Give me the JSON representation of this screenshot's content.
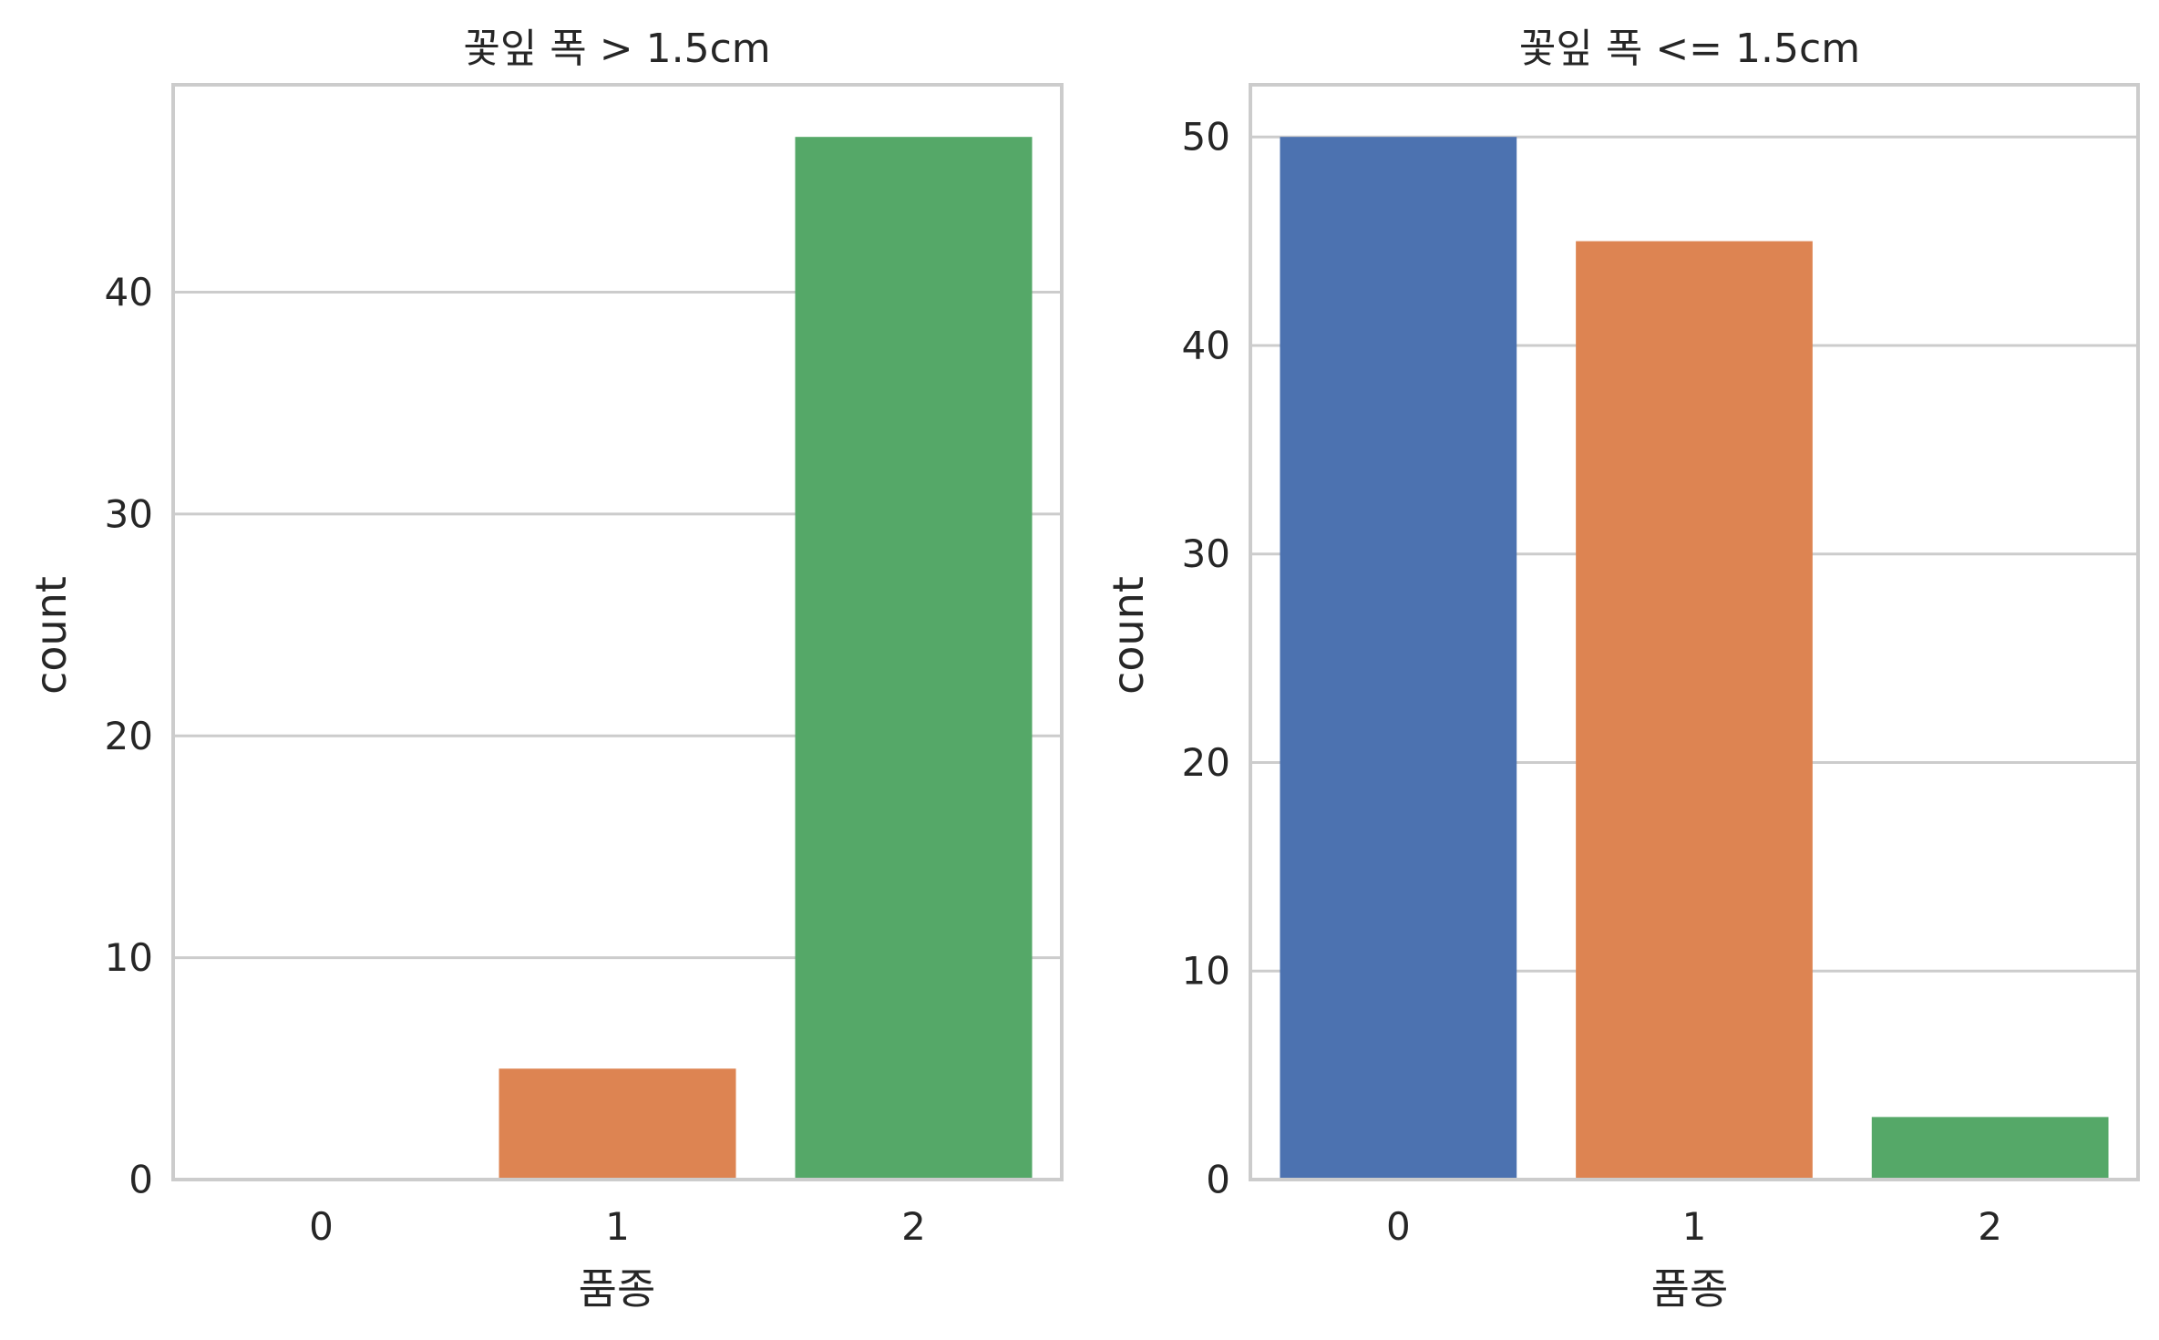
{
  "chart_data": [
    {
      "type": "bar",
      "title": "꽃잎 폭 > 1.5cm",
      "xlabel": "품종",
      "ylabel": "count",
      "categories": [
        "0",
        "1",
        "2"
      ],
      "values": [
        0,
        5,
        47
      ],
      "colors": [
        "#4c72b0",
        "#dd8452",
        "#55a868"
      ],
      "ylim": [
        0,
        49.35
      ],
      "yticks": [
        0,
        10,
        20,
        30,
        40
      ],
      "grid": true,
      "legend": "none"
    },
    {
      "type": "bar",
      "title": "꽃잎 폭 <= 1.5cm",
      "xlabel": "품종",
      "ylabel": "count",
      "categories": [
        "0",
        "1",
        "2"
      ],
      "values": [
        50,
        45,
        3
      ],
      "colors": [
        "#4c72b0",
        "#dd8452",
        "#55a868"
      ],
      "ylim": [
        0,
        52.5
      ],
      "yticks": [
        0,
        10,
        20,
        30,
        40,
        50
      ],
      "grid": true,
      "legend": "none"
    }
  ]
}
